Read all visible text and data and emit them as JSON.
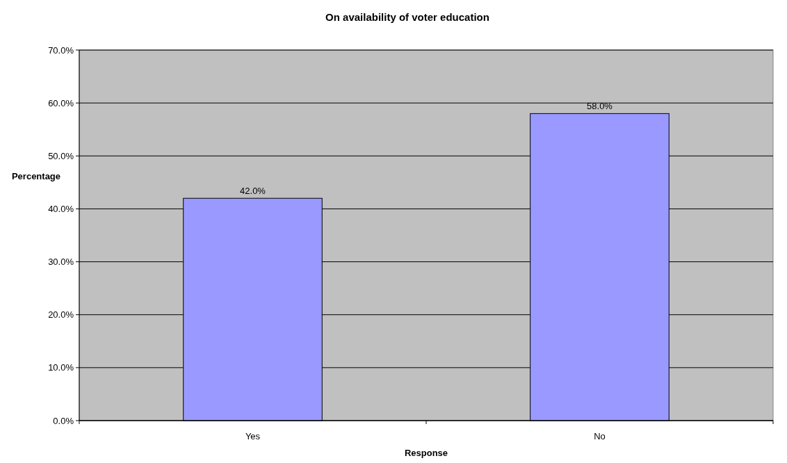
{
  "chart_data": {
    "type": "bar",
    "title": "On availability of voter education",
    "xlabel": "Response",
    "ylabel": "Percentage",
    "categories": [
      "Yes",
      "No"
    ],
    "values": [
      42.0,
      58.0
    ],
    "value_labels": [
      "42.0%",
      "58.0%"
    ],
    "color": "#9999ff",
    "ylim": [
      0,
      70
    ],
    "yticks": [
      {
        "value": 0,
        "label": "0.0%"
      },
      {
        "value": 10,
        "label": "10.0%"
      },
      {
        "value": 20,
        "label": "20.0%"
      },
      {
        "value": 30,
        "label": "30.0%"
      },
      {
        "value": 40,
        "label": "40.0%"
      },
      {
        "value": 50,
        "label": "50.0%"
      },
      {
        "value": 60,
        "label": "60.0%"
      },
      {
        "value": 70,
        "label": "70.0%"
      }
    ],
    "grid": "y"
  }
}
